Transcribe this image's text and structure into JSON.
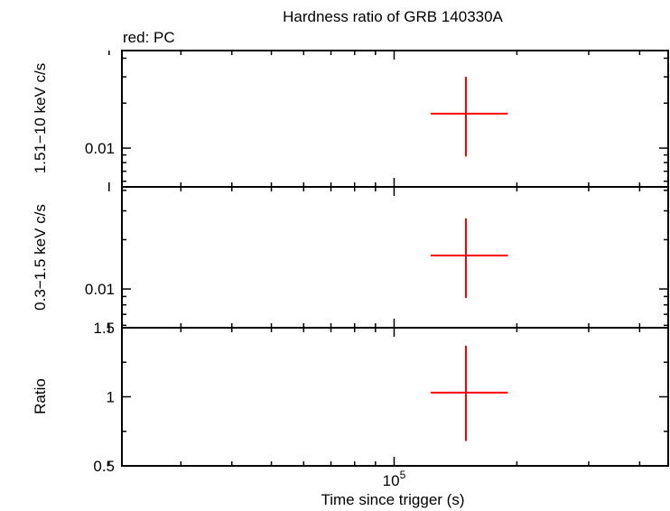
{
  "title": "Hardness ratio of GRB 140330A",
  "legend_text": "red: PC",
  "xlabel": "Time since trigger (s)",
  "colors": {
    "data": "#ff0000",
    "axes": "#000000",
    "background": "#ffffff"
  },
  "chart_data": [
    {
      "type": "scatter",
      "panel": "top",
      "ylabel": "1.51−10 keV c/s",
      "xscale": "log",
      "yscale": "log",
      "x_tick_labels": [],
      "y_tick_labels": [
        "0.01"
      ],
      "series": [
        {
          "name": "PC",
          "points": [
            {
              "x": 150000,
              "x_err": [
                123000,
                190000
              ],
              "y": 0.017,
              "y_err": [
                0.0088,
                0.03
              ]
            }
          ]
        }
      ]
    },
    {
      "type": "scatter",
      "panel": "middle",
      "ylabel": "0.3−1.5 keV c/s",
      "xscale": "log",
      "yscale": "log",
      "x_tick_labels": [],
      "y_tick_labels": [
        "0.01"
      ],
      "series": [
        {
          "name": "PC",
          "points": [
            {
              "x": 150000,
              "x_err": [
                123000,
                190000
              ],
              "y": 0.016,
              "y_err": [
                0.0088,
                0.027
              ]
            }
          ]
        }
      ]
    },
    {
      "type": "scatter",
      "panel": "bottom",
      "ylabel": "Ratio",
      "xscale": "log",
      "yscale": "linear",
      "ylim": [
        0.5,
        1.5
      ],
      "x_tick_labels": [
        {
          "base": "10",
          "exp": "5"
        }
      ],
      "y_tick_labels": [
        "0.5",
        "1",
        "1.5"
      ],
      "series": [
        {
          "name": "PC",
          "points": [
            {
              "x": 150000,
              "x_err": [
                123000,
                190000
              ],
              "y": 1.03,
              "y_err": [
                0.68,
                1.37
              ]
            }
          ]
        }
      ]
    }
  ]
}
